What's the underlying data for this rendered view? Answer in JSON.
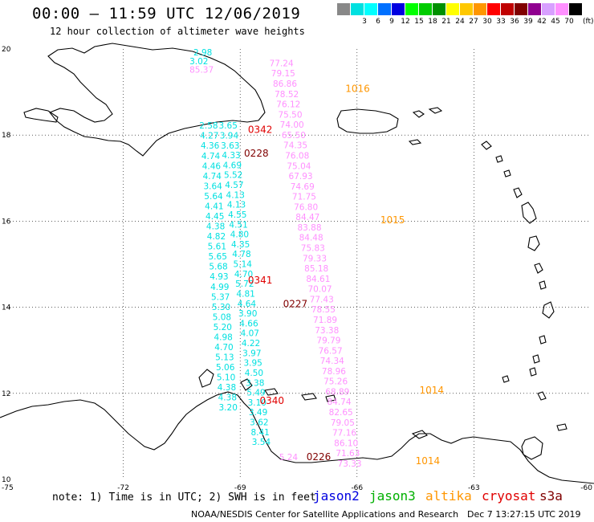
{
  "header": {
    "title": "00:00 – 11:59 UTC 12/06/2019",
    "subtitle": "12 hour collection of altimeter wave heights"
  },
  "scale": {
    "unit": "(ft)",
    "swatches": [
      {
        "label": "",
        "color": "#888888"
      },
      {
        "label": "3",
        "color": "#00e0e0"
      },
      {
        "label": "6",
        "color": "#00ffff"
      },
      {
        "label": "9",
        "color": "#0070ff"
      },
      {
        "label": "12",
        "color": "#0000e0"
      },
      {
        "label": "15",
        "color": "#00ff00"
      },
      {
        "label": "18",
        "color": "#00cc00"
      },
      {
        "label": "21",
        "color": "#009000"
      },
      {
        "label": "24",
        "color": "#ffff00"
      },
      {
        "label": "27",
        "color": "#ffc800"
      },
      {
        "label": "30",
        "color": "#ff9600"
      },
      {
        "label": "33",
        "color": "#ff0000"
      },
      {
        "label": "36",
        "color": "#c00000"
      },
      {
        "label": "39",
        "color": "#800000"
      },
      {
        "label": "42",
        "color": "#900090"
      },
      {
        "label": "45",
        "color": "#d8a0ff"
      },
      {
        "label": "70",
        "color": "#ff90ff"
      },
      {
        "label": "",
        "color": "#000000"
      }
    ]
  },
  "map": {
    "lat_labels": [
      {
        "value": "20",
        "lat": 20
      },
      {
        "value": "18",
        "lat": 18
      },
      {
        "value": "16",
        "lat": 16
      },
      {
        "value": "14",
        "lat": 14
      },
      {
        "value": "12",
        "lat": 12
      },
      {
        "value": "10",
        "lat": 10
      }
    ],
    "lon_labels": [
      {
        "value": "-75",
        "lon": -75
      },
      {
        "value": "-72",
        "lon": -72
      },
      {
        "value": "-69",
        "lon": -69
      },
      {
        "value": "-66",
        "lon": -66
      },
      {
        "value": "-63",
        "lon": -63
      },
      {
        "value": "-60",
        "lon": -60
      }
    ],
    "time_labels": [
      {
        "text": "1016",
        "lon": -66.3,
        "lat": 19.0,
        "color": "#ff9600"
      },
      {
        "text": "0342",
        "lon": -68.8,
        "lat": 18.05,
        "color": "#e00000"
      },
      {
        "text": "0228",
        "lon": -68.9,
        "lat": 17.5,
        "color": "#800000"
      },
      {
        "text": "1015",
        "lon": -65.4,
        "lat": 15.95,
        "color": "#ff9600"
      },
      {
        "text": "0341",
        "lon": -68.8,
        "lat": 14.55,
        "color": "#e00000"
      },
      {
        "text": "0227",
        "lon": -67.9,
        "lat": 14.0,
        "color": "#800000"
      },
      {
        "text": "1014",
        "lon": -64.4,
        "lat": 12.0,
        "color": "#ff9600"
      },
      {
        "text": "0340",
        "lon": -68.5,
        "lat": 11.75,
        "color": "#e00000"
      },
      {
        "text": "0226",
        "lon": -67.3,
        "lat": 10.45,
        "color": "#800000"
      },
      {
        "text": "1014",
        "lon": -64.5,
        "lat": 10.35,
        "color": "#ff9600"
      }
    ],
    "tracks": [
      {
        "name": "cyan-west",
        "color": "#00e0e0",
        "lon_start": -70.05,
        "lat_start": 18.15,
        "lon_end": -69.55,
        "lat_end": 11.6,
        "values": [
          "2.58",
          "4.27",
          "4.36",
          "4.74",
          "4.46",
          "4.74",
          "3.64",
          "5.64",
          "4.41",
          "4.45",
          "4.38",
          "4.82",
          "5.61",
          "5.65",
          "5.68",
          "4.93",
          "4.99",
          "5.37",
          "5.30",
          "5.08",
          "5.20",
          "4.98",
          "4.70",
          "5.13",
          "5.06",
          "5.10",
          "4.38",
          "4.38",
          "3.20"
        ]
      },
      {
        "name": "cyan-east",
        "color": "#00e0e0",
        "lon_start": -69.55,
        "lat_start": 18.15,
        "lon_end": -68.7,
        "lat_end": 10.8,
        "values": [
          "3.65",
          "3.94",
          "3.63",
          "4.33",
          "4.69",
          "5.52",
          "4.57",
          "4.13",
          "4.13",
          "4.55",
          "4.51",
          "4.80",
          "4.35",
          "4.78",
          "5.14",
          "4.70",
          "5.72",
          "4.81",
          "4.64",
          "3.90",
          "4.66",
          "4.07",
          "4.22",
          "3.97",
          "3.95",
          "4.50",
          "3.38",
          "5.49",
          "3.10",
          "3.49",
          "3.62",
          "8.41",
          "3.54"
        ]
      },
      {
        "name": "pink-envisat",
        "color": "#ff90ff",
        "lon_start": -68.25,
        "lat_start": 19.6,
        "lon_end": -66.5,
        "lat_end": 10.3,
        "values": [
          "77.24",
          "79.15",
          "86.86",
          "78.52",
          "76.12",
          "75.50",
          "74.00",
          "65.50",
          "74.35",
          "76.08",
          "75.04",
          "67.93",
          "74.69",
          "71.75",
          "76.80",
          "84.47",
          "83.88",
          "84.48",
          "75.83",
          "79.33",
          "85.18",
          "84.61",
          "70.07",
          "77.43",
          "78.55",
          "71.89",
          "73.38",
          "79.79",
          "76.57",
          "74.34",
          "78.96",
          "75.26",
          "68.89",
          "84.74",
          "82.65",
          "79.05",
          "77.16",
          "86.10",
          "71.63",
          "73.33"
        ]
      }
    ],
    "extra_obs": [
      {
        "text": "2.98",
        "lon": -70.2,
        "lat": 19.85,
        "color": "#00e0e0"
      },
      {
        "text": "3.02",
        "lon": -70.3,
        "lat": 19.65,
        "color": "#00e0e0"
      },
      {
        "text": "85.37",
        "lon": -70.3,
        "lat": 19.45,
        "color": "#ff90ff"
      },
      {
        "text": "5.24",
        "lon": -68.0,
        "lat": 10.45,
        "color": "#ff90ff"
      }
    ]
  },
  "footer": {
    "note": "note: 1) Time is in UTC; 2) SWH is in feet",
    "legend": [
      {
        "label": "jason2",
        "color": "#0000e0"
      },
      {
        "label": "jason3",
        "color": "#00b000"
      },
      {
        "label": "altika",
        "color": "#ff9600"
      },
      {
        "label": "cryosat",
        "color": "#e00000"
      },
      {
        "label": "s3a",
        "color": "#800000"
      }
    ],
    "credit": "NOAA/NESDIS Center for Satellite Applications and Research",
    "timestamp": "Dec  7 13:27:15 UTC 2019"
  }
}
